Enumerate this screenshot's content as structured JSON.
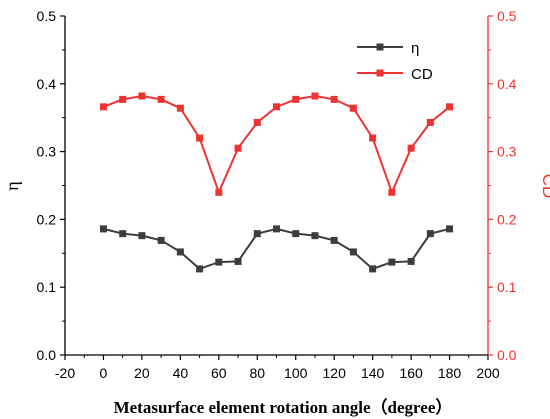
{
  "chart_data": {
    "type": "line",
    "xlabel": "Metasurface element rotation angle（degree）",
    "ylabel_left": "η",
    "ylabel_right": "CD",
    "xlim": [
      -20,
      200
    ],
    "ylim_left": [
      0.0,
      0.5
    ],
    "ylim_right": [
      0.0,
      0.5
    ],
    "x_ticks": [
      "-20",
      "0",
      "20",
      "40",
      "60",
      "80",
      "100",
      "120",
      "140",
      "160",
      "180",
      "200"
    ],
    "y_ticks_left": [
      "0.0",
      "0.1",
      "0.2",
      "0.3",
      "0.4",
      "0.5"
    ],
    "y_ticks_right": [
      "0.0",
      "0.1",
      "0.2",
      "0.3",
      "0.4",
      "0.5"
    ],
    "x": [
      0,
      10,
      20,
      30,
      40,
      50,
      60,
      70,
      80,
      90,
      100,
      110,
      120,
      130,
      140,
      150,
      160,
      170,
      180
    ],
    "series": [
      {
        "name": "η",
        "axis": "left",
        "color": "#3d3d3d",
        "marker": "square",
        "values": [
          0.186,
          0.179,
          0.176,
          0.169,
          0.152,
          0.127,
          0.137,
          0.138,
          0.179,
          0.186,
          0.179,
          0.176,
          0.169,
          0.152,
          0.127,
          0.137,
          0.138,
          0.179,
          0.186
        ]
      },
      {
        "name": "CD",
        "axis": "right",
        "color": "#ee3333",
        "marker": "square",
        "values": [
          0.366,
          0.377,
          0.382,
          0.377,
          0.364,
          0.32,
          0.24,
          0.305,
          0.343,
          0.366,
          0.377,
          0.382,
          0.377,
          0.364,
          0.32,
          0.24,
          0.305,
          0.343,
          0.366
        ]
      }
    ],
    "legend": "top-right",
    "grid": false
  },
  "colors": {
    "left_axis": "#000000",
    "right_axis": "#ee3333"
  }
}
